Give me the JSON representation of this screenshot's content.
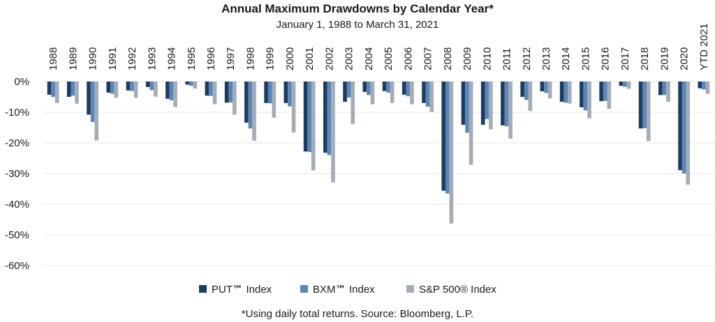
{
  "chart_data": {
    "type": "bar",
    "title": "Annual Maximum Drawdowns by Calendar Year*",
    "subtitle": "January 1, 1988 to March 31, 2021",
    "footnote": "*Using daily total returns. Source: Bloomberg, L.P.",
    "ylim": [
      -60,
      0
    ],
    "yticks": [
      "0%",
      "-10%",
      "-20%",
      "-30%",
      "-40%",
      "-50%",
      "-60%"
    ],
    "ytick_values": [
      0,
      -10,
      -20,
      -30,
      -40,
      -50,
      -60
    ],
    "grid": true,
    "legend_position": "bottom",
    "categories": [
      "1988",
      "1989",
      "1990",
      "1991",
      "1992",
      "1993",
      "1994",
      "1995",
      "1996",
      "1997",
      "1998",
      "1999",
      "2000",
      "2001",
      "2002",
      "2003",
      "2004",
      "2005",
      "2006",
      "2007",
      "2008",
      "2009",
      "2010",
      "2011",
      "2012",
      "2013",
      "2014",
      "2015",
      "2016",
      "2017",
      "2018",
      "2019",
      "2020",
      "YTD 2021"
    ],
    "series": [
      {
        "name": "PUT℠ Index",
        "color": "#1b3d63",
        "values": [
          -4.3,
          -5.0,
          -10.8,
          -3.6,
          -2.9,
          -1.8,
          -5.6,
          -1.0,
          -4.6,
          -6.9,
          -13.4,
          -7.0,
          -7.0,
          -22.8,
          -23.2,
          -6.6,
          -3.4,
          -3.1,
          -4.3,
          -7.0,
          -35.6,
          -14.1,
          -14.1,
          -14.3,
          -5.0,
          -3.2,
          -6.6,
          -8.4,
          -6.4,
          -1.4,
          -15.3,
          -4.4,
          -28.9,
          -2.2
        ]
      },
      {
        "name": "BXM℠ Index",
        "color": "#5a87b8",
        "values": [
          -5.0,
          -4.6,
          -13.2,
          -4.0,
          -3.1,
          -2.8,
          -6.1,
          -1.4,
          -4.7,
          -6.8,
          -15.3,
          -7.1,
          -8.1,
          -23.0,
          -24.0,
          -5.2,
          -4.4,
          -3.6,
          -4.8,
          -8.2,
          -36.5,
          -16.7,
          -12.2,
          -14.6,
          -6.0,
          -3.7,
          -6.9,
          -9.4,
          -6.3,
          -1.7,
          -15.2,
          -4.4,
          -30.0,
          -2.6
        ]
      },
      {
        "name": "S&P 500® Index",
        "color": "#a5acb3",
        "values": [
          -7.0,
          -7.2,
          -19.2,
          -5.3,
          -5.3,
          -4.9,
          -8.3,
          -2.3,
          -7.4,
          -10.8,
          -19.3,
          -11.8,
          -16.6,
          -29.0,
          -32.9,
          -13.8,
          -7.4,
          -7.0,
          -7.4,
          -9.9,
          -46.3,
          -27.1,
          -15.6,
          -18.6,
          -9.6,
          -5.5,
          -7.2,
          -12.0,
          -8.9,
          -2.4,
          -19.4,
          -6.6,
          -33.6,
          -4.0
        ]
      }
    ]
  }
}
